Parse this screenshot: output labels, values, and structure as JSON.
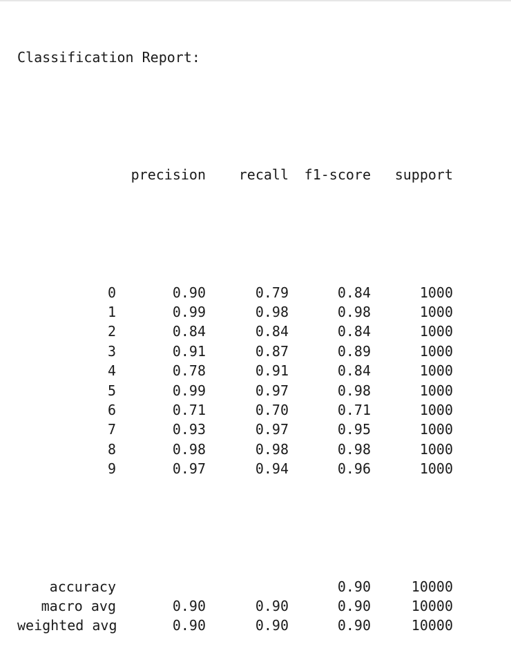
{
  "report": {
    "title": "Classification Report:",
    "headers": {
      "precision": "precision",
      "recall": "recall",
      "f1": "f1-score",
      "support": "support"
    },
    "rows": [
      {
        "label": "0",
        "precision": "0.90",
        "recall": "0.79",
        "f1": "0.84",
        "support": "1000"
      },
      {
        "label": "1",
        "precision": "0.99",
        "recall": "0.98",
        "f1": "0.98",
        "support": "1000"
      },
      {
        "label": "2",
        "precision": "0.84",
        "recall": "0.84",
        "f1": "0.84",
        "support": "1000"
      },
      {
        "label": "3",
        "precision": "0.91",
        "recall": "0.87",
        "f1": "0.89",
        "support": "1000"
      },
      {
        "label": "4",
        "precision": "0.78",
        "recall": "0.91",
        "f1": "0.84",
        "support": "1000"
      },
      {
        "label": "5",
        "precision": "0.99",
        "recall": "0.97",
        "f1": "0.98",
        "support": "1000"
      },
      {
        "label": "6",
        "precision": "0.71",
        "recall": "0.70",
        "f1": "0.71",
        "support": "1000"
      },
      {
        "label": "7",
        "precision": "0.93",
        "recall": "0.97",
        "f1": "0.95",
        "support": "1000"
      },
      {
        "label": "8",
        "precision": "0.98",
        "recall": "0.98",
        "f1": "0.98",
        "support": "1000"
      },
      {
        "label": "9",
        "precision": "0.97",
        "recall": "0.94",
        "f1": "0.96",
        "support": "1000"
      }
    ],
    "summary": [
      {
        "label": "accuracy",
        "precision": "",
        "recall": "",
        "f1": "0.90",
        "support": "10000"
      },
      {
        "label": "macro avg",
        "precision": "0.90",
        "recall": "0.90",
        "f1": "0.90",
        "support": "10000"
      },
      {
        "label": "weighted avg",
        "precision": "0.90",
        "recall": "0.90",
        "f1": "0.90",
        "support": "10000"
      }
    ]
  }
}
